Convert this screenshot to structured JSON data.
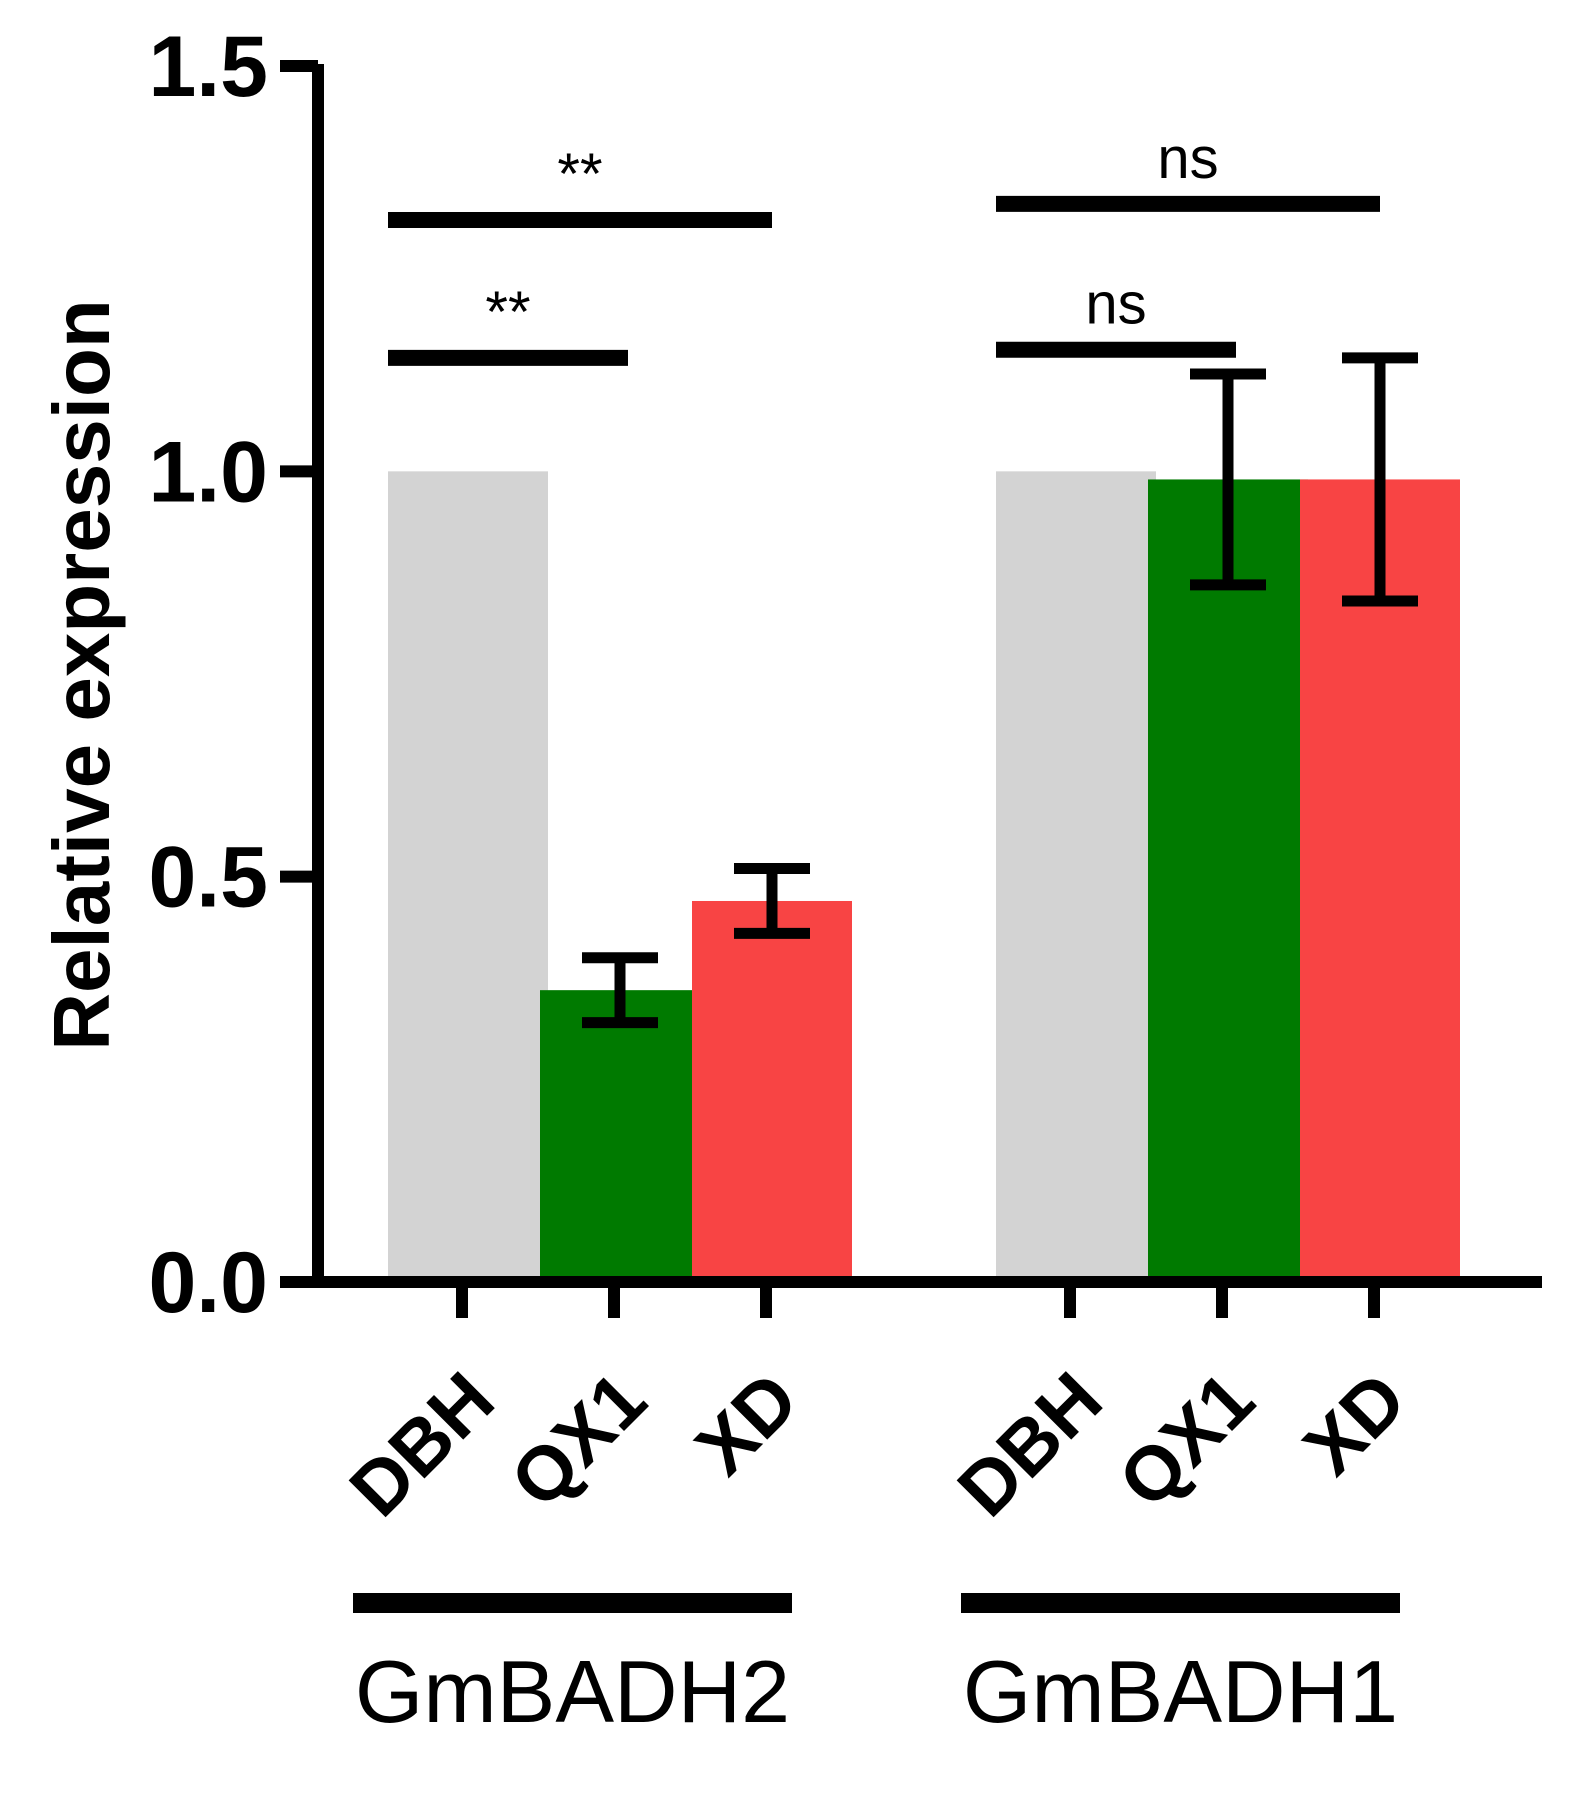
{
  "chart_data": {
    "type": "bar",
    "title": "",
    "xlabel": "",
    "ylabel": "Relative expression",
    "ylim": [
      0,
      1.5
    ],
    "yticks": [
      {
        "value": 0.0,
        "label": "0.0"
      },
      {
        "value": 0.5,
        "label": "0.5"
      },
      {
        "value": 1.0,
        "label": "1.0"
      },
      {
        "value": 1.5,
        "label": "1.5"
      }
    ],
    "colors": {
      "DBH": "#d3d3d3",
      "QX1": "#007a00",
      "XD": "#f84444",
      "axis": "#000000"
    },
    "groups": [
      {
        "name": "GmBADH2",
        "bars": [
          {
            "category": "DBH",
            "value": 1.0,
            "error": 0
          },
          {
            "category": "QX1",
            "value": 0.36,
            "error": 0.04
          },
          {
            "category": "XD",
            "value": 0.47,
            "error": 0.04
          }
        ],
        "significance": [
          {
            "from": 0,
            "to": 1,
            "label": "**",
            "y": 1.14
          },
          {
            "from": 0,
            "to": 2,
            "label": "**",
            "y": 1.31
          }
        ]
      },
      {
        "name": "GmBADH1",
        "bars": [
          {
            "category": "DBH",
            "value": 1.0,
            "error": 0
          },
          {
            "category": "QX1",
            "value": 0.99,
            "error": 0.13
          },
          {
            "category": "XD",
            "value": 0.99,
            "error": 0.15
          }
        ],
        "significance": [
          {
            "from": 0,
            "to": 1,
            "label": "ns",
            "y": 1.15
          },
          {
            "from": 0,
            "to": 2,
            "label": "ns",
            "y": 1.33
          }
        ]
      }
    ]
  }
}
